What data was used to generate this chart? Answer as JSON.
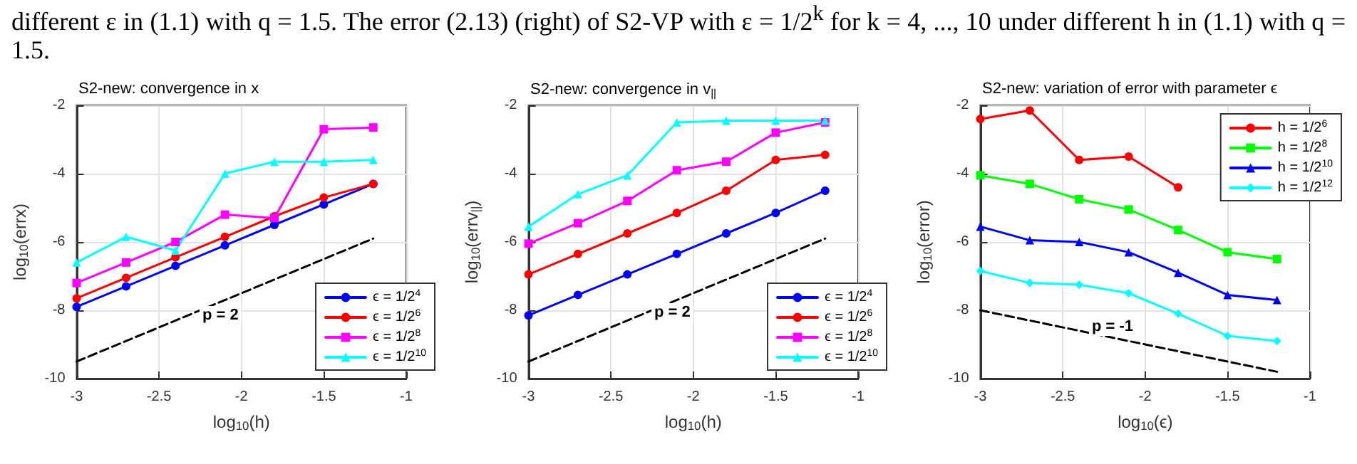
{
  "chart_data": [
    {
      "type": "line",
      "title": "S2-new: convergence in x",
      "xlabel": "log$_{10}$(h)",
      "ylabel": "log$_{10}$(errx)",
      "annotations": [
        "different ε in (1.1) with q = 1.5. The error (2.13) (right) of S2-VP with ε = 1/2$^{k}$ for k = 4, ..., 10 under different h in (1.1) with q = 1.5.",
        "p = 2"
      ],
      "x": [
        -3,
        -2.7,
        -2.4,
        -2.1,
        -1.8,
        -1.5,
        -1.2
      ],
      "series": [
        {
          "name": "ϵ = 1/2$^{4}$",
          "color": "#0000ff",
          "marker": "circle",
          "values": [
            -7.9,
            -7.3,
            -6.7,
            -6.1,
            -5.5,
            -4.9,
            -4.3
          ]
        },
        {
          "name": "ϵ = 1/2$^{6}$",
          "color": "#ff0000",
          "marker": "circle",
          "values": [
            -7.65,
            -7.05,
            -6.45,
            -5.85,
            -5.25,
            -4.7,
            -4.3
          ]
        },
        {
          "name": "ϵ = 1/2$^{8}$",
          "color": "#ff00ff",
          "marker": "square",
          "values": [
            -7.2,
            -6.6,
            -6.0,
            -5.2,
            -5.3,
            -2.7,
            -2.65
          ]
        },
        {
          "name": "ϵ = 1/2$^{10}$",
          "color": "#00ffff",
          "marker": "triangle",
          "values": [
            -6.6,
            -5.85,
            -6.25,
            -4.0,
            -3.65,
            -3.65,
            -3.6
          ]
        },
        {
          "color": "#000000",
          "marker": "none",
          "line_style": "dashed",
          "values": [
            -9.5,
            -8.9,
            -8.3,
            -7.7,
            -7.1,
            -6.5,
            -5.9
          ]
        }
      ],
      "xlim": [
        -3,
        -1
      ],
      "xticks": [
        -3,
        -2.5,
        -2,
        -1.5,
        -1
      ],
      "ylim": [
        -10,
        -2
      ],
      "yticks": [
        -10,
        -8,
        -6,
        -4,
        -2
      ],
      "grid": true,
      "legend": "bottom right"
    },
    {
      "type": "line",
      "title": "S2-new: convergence in v$_{||}$",
      "xlabel": "log$_{10}$(h)",
      "ylabel": "log$_{10}$(errv$_{||}$)",
      "annotations": [
        "p = 2"
      ],
      "x": [
        -3,
        -2.7,
        -2.4,
        -2.1,
        -1.8,
        -1.5,
        -1.2
      ],
      "series": [
        {
          "name": "ϵ = 1/2$^{4}$",
          "color": "#0000ff",
          "marker": "circle",
          "values": [
            -8.15,
            -7.55,
            -6.95,
            -6.35,
            -5.75,
            -5.15,
            -4.5
          ]
        },
        {
          "name": "ϵ = 1/2$^{6}$",
          "color": "#ff0000",
          "marker": "circle",
          "values": [
            -6.95,
            -6.35,
            -5.75,
            -5.15,
            -4.5,
            -3.6,
            -3.45
          ]
        },
        {
          "name": "ϵ = 1/2$^{8}$",
          "color": "#ff00ff",
          "marker": "square",
          "values": [
            -6.05,
            -5.45,
            -4.8,
            -3.9,
            -3.65,
            -2.8,
            -2.5
          ]
        },
        {
          "name": "ϵ = 1/2$^{10}$",
          "color": "#00ffff",
          "marker": "triangle",
          "values": [
            -5.55,
            -4.6,
            -4.05,
            -2.5,
            -2.45,
            -2.45,
            -2.45
          ]
        },
        {
          "color": "#000000",
          "marker": "none",
          "line_style": "dashed",
          "values": [
            -9.5,
            -8.9,
            -8.3,
            -7.7,
            -7.1,
            -6.5,
            -5.9
          ]
        }
      ],
      "xlim": [
        -3,
        -1
      ],
      "xticks": [
        -3,
        -2.5,
        -2,
        -1.5,
        -1
      ],
      "ylim": [
        -10,
        -2
      ],
      "yticks": [
        -10,
        -8,
        -6,
        -4,
        -2
      ],
      "grid": true,
      "legend": "bottom right"
    },
    {
      "type": "line",
      "title": "S2-new: variation of error with parameter ϵ",
      "xlabel": "log$_{10}$(ϵ)",
      "ylabel": "log$_{10}$(error)",
      "annotations": [
        "p = -1"
      ],
      "x": [
        -3,
        -2.7,
        -2.4,
        -2.1,
        -1.8,
        -1.5,
        -1.2
      ],
      "series": [
        {
          "name": "h = 1/2$^{6}$",
          "color": "#ff0000",
          "marker": "circle",
          "values": [
            -2.4,
            -2.15,
            -3.6,
            -3.5,
            -4.4,
            null,
            null
          ]
        },
        {
          "name": "h = 1/2$^{8}$",
          "color": "#00ff00",
          "marker": "square",
          "values": [
            -4.05,
            -4.3,
            -4.75,
            -5.05,
            -5.65,
            -6.3,
            -6.5
          ]
        },
        {
          "name": "h = 1/2$^{10}$",
          "color": "#0000ff",
          "marker": "triangle",
          "values": [
            -5.55,
            -5.95,
            -6.0,
            -6.3,
            -6.9,
            -7.55,
            -7.7
          ]
        },
        {
          "name": "h = 1/2$^{12}$",
          "color": "#00ffff",
          "marker": "diamond",
          "values": [
            -6.85,
            -7.2,
            -7.25,
            -7.5,
            -8.1,
            -8.75,
            -8.9
          ]
        },
        {
          "color": "#000000",
          "marker": "none",
          "line_style": "dashed",
          "values": [
            -8.0,
            -8.3,
            -8.6,
            -8.9,
            -9.2,
            -9.5,
            -9.8
          ]
        }
      ],
      "xlim": [
        -3,
        -1
      ],
      "xticks": [
        -3,
        -2.5,
        -2,
        -1.5,
        -1
      ],
      "ylim": [
        -10,
        -2
      ],
      "yticks": [
        -10,
        -8,
        -6,
        -4,
        -2
      ],
      "grid": true,
      "legend": "top right"
    }
  ]
}
